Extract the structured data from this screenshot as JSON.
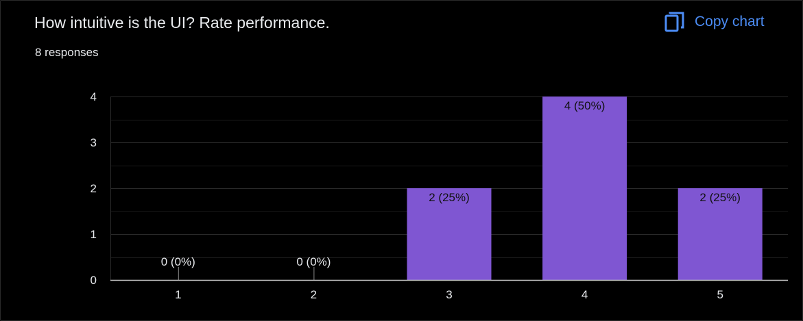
{
  "header": {
    "title": "How intuitive is the UI? Rate performance.",
    "responses": "8 responses",
    "copy_label": "Copy chart",
    "copy_icon": "copy-icon"
  },
  "colors": {
    "bar": "#7f56d2",
    "accent": "#4c8df6",
    "grid": "#262626",
    "baseline": "#cccccc"
  },
  "chart_data": {
    "type": "bar",
    "categories": [
      "1",
      "2",
      "3",
      "4",
      "5"
    ],
    "values": [
      0,
      0,
      2,
      4,
      2
    ],
    "labels": [
      "0 (0%)",
      "0 (0%)",
      "2 (25%)",
      "4 (50%)",
      "2 (25%)"
    ],
    "yticks": [
      0,
      1,
      2,
      3,
      4
    ],
    "ylim": [
      0,
      4
    ],
    "grid": true,
    "legend": "none"
  }
}
